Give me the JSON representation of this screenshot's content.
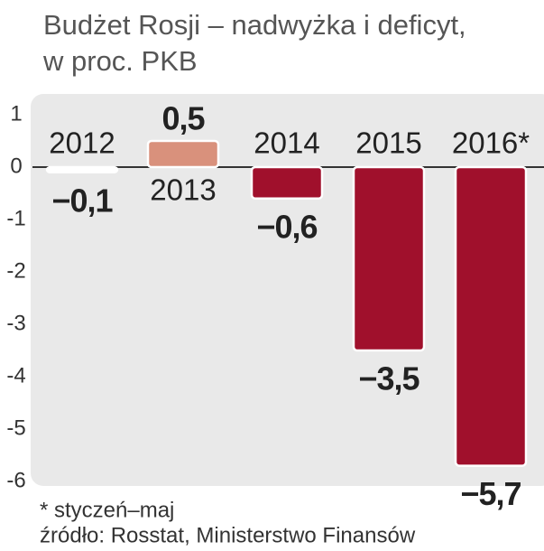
{
  "chart_data": {
    "type": "bar",
    "title": "Budżet Rosji – nadwyżka i deficyt,",
    "subtitle": "w proc. PKB",
    "categories": [
      "2012",
      "2013",
      "2014",
      "2015",
      "2016*"
    ],
    "values": [
      -0.1,
      0.5,
      -0.6,
      -3.5,
      -5.7
    ],
    "value_labels": [
      "−0,1",
      "0,5",
      "−0,6",
      "−3,5",
      "−5,7"
    ],
    "colors": [
      "#ffffff",
      "#d9917c",
      "#a0102c",
      "#a0102c",
      "#a0102c"
    ],
    "ylim": [
      -6,
      1
    ],
    "yticks": [
      1,
      0,
      -1,
      -2,
      -3,
      -4,
      -5,
      -6
    ],
    "footnote": "* styczeń–maj",
    "source": "źródło: Rosstat, Ministerstwo Finansów"
  }
}
